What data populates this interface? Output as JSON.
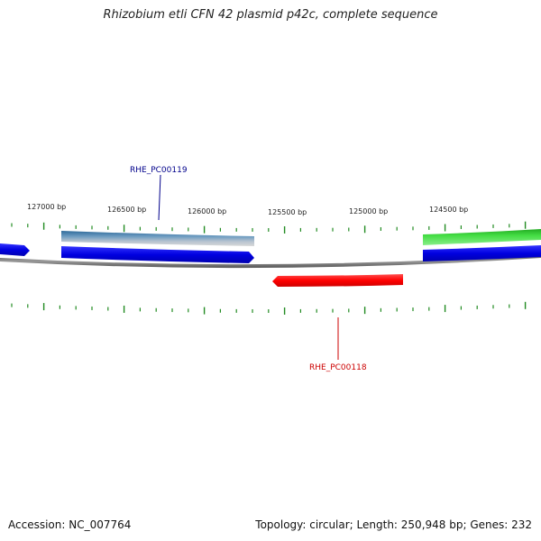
{
  "title": "Rhizobium etli CFN 42 plasmid p42c, complete sequence",
  "ruler_labels": [
    "127000 bp",
    "126500 bp",
    "126000 bp",
    "125500 bp",
    "125000 bp",
    "124500 bp"
  ],
  "feature_labels": [
    {
      "text": "RHE_PC00119",
      "color": "#00008b"
    },
    {
      "text": "RHE_PC00118",
      "color": "#cc0000"
    }
  ],
  "footer": {
    "accession": "Accession: NC_007764",
    "summary": "Topology: circular; Length: 250,948 bp; Genes: 232"
  },
  "colors": {
    "blue_gene": "#0000ee",
    "red_gene": "#ff0000",
    "green_gene": "#33cc33",
    "steel_gene": "#4a7faf",
    "tick": "#228b22",
    "backbone": "#777777"
  }
}
